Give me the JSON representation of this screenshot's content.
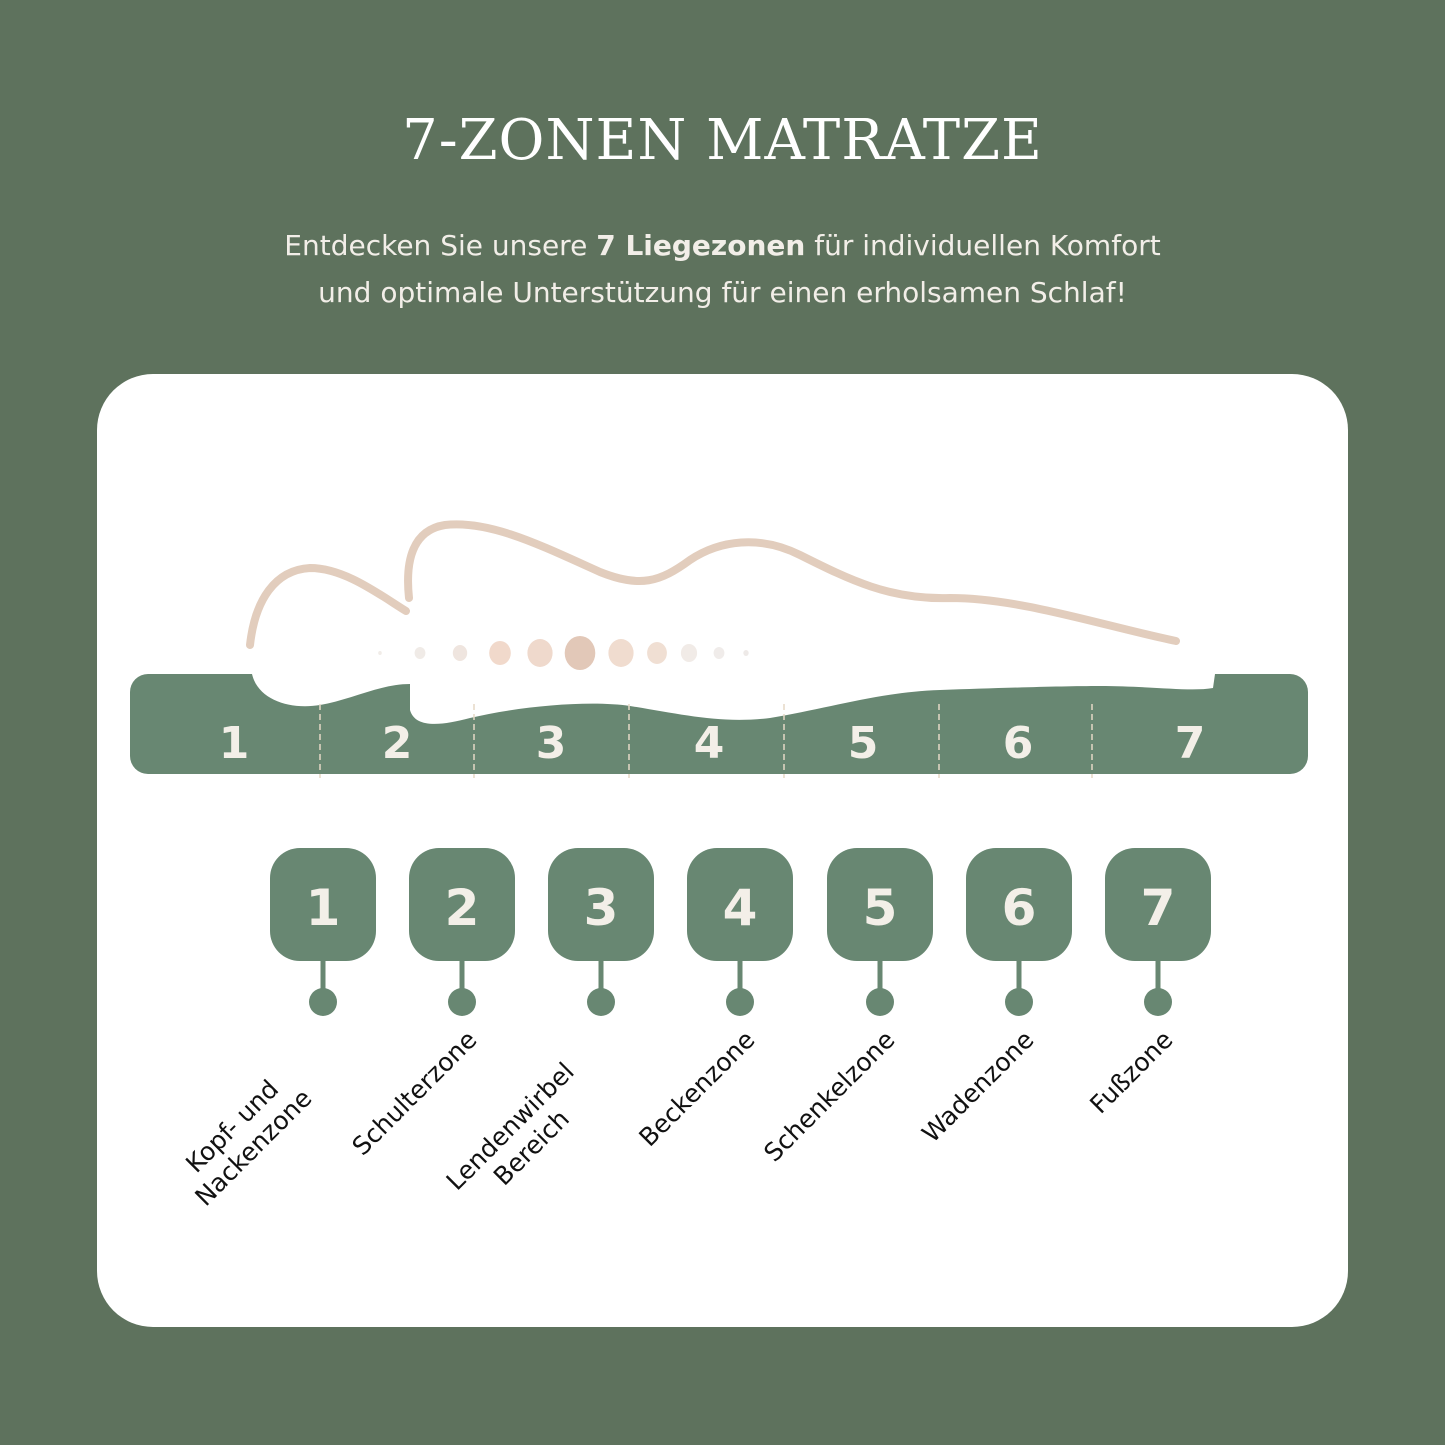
{
  "title": "7-ZONEN MATRATZE",
  "subtitle": {
    "line1_pre": "Entdecken Sie unsere ",
    "line1_bold": "7 Liegezonen",
    "line1_post": " für individuellen Komfort",
    "line2": "und optimale Unterstützung für einen erholsamen Schlaf!"
  },
  "colors": {
    "background": "#5e725d",
    "card": "#ffffff",
    "zone_green": "#688772",
    "body_outline": "#e2cdbd",
    "number_text": "#f3efe8"
  },
  "mattress_zones": [
    "1",
    "2",
    "3",
    "4",
    "5",
    "6",
    "7"
  ],
  "zones": [
    {
      "number": "1",
      "label": "Kopf- und",
      "label2": "Nackenzone"
    },
    {
      "number": "2",
      "label": "Schulterzone"
    },
    {
      "number": "3",
      "label": "Lendenwirbel",
      "label2": "Bereich"
    },
    {
      "number": "4",
      "label": "Beckenzone"
    },
    {
      "number": "5",
      "label": "Schenkelzone"
    },
    {
      "number": "6",
      "label": "Wadenzone"
    },
    {
      "number": "7",
      "label": "Fußzone"
    }
  ]
}
